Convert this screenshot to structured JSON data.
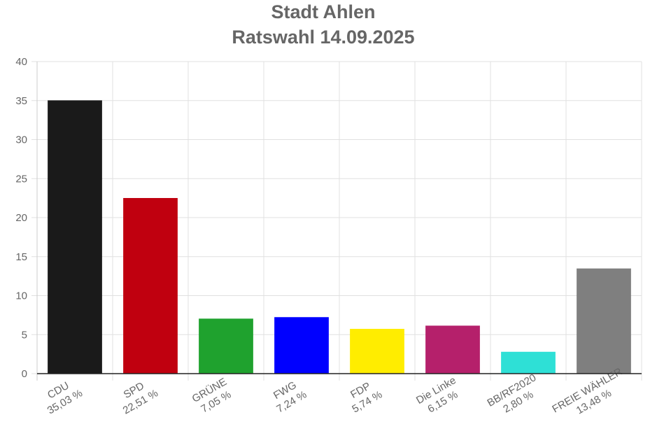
{
  "chart_data": {
    "type": "bar",
    "title": "Stadt Ahlen",
    "subtitle": "Ratswahl 14.09.2025",
    "categories": [
      "CDU",
      "SPD",
      "GRÜNE",
      "FWG",
      "FDP",
      "Die Linke",
      "BB/RF2020",
      "FREIE WÄHLER"
    ],
    "values": [
      35.03,
      22.51,
      7.05,
      7.24,
      5.74,
      6.15,
      2.8,
      13.48
    ],
    "value_labels": [
      "35,03 %",
      "22,51 %",
      "7,05 %",
      "7,24 %",
      "5,74 %",
      "6,15 %",
      "2,80 %",
      "13,48 %"
    ],
    "colors": [
      "#1a1a1a",
      "#c0000f",
      "#1fa22e",
      "#0000ff",
      "#ffed00",
      "#b5206b",
      "#2ee0d6",
      "#7f7f7f"
    ],
    "ylim": [
      0,
      40
    ],
    "yticks": [
      0,
      5,
      10,
      15,
      20,
      25,
      30,
      35,
      40
    ],
    "grid": true
  }
}
